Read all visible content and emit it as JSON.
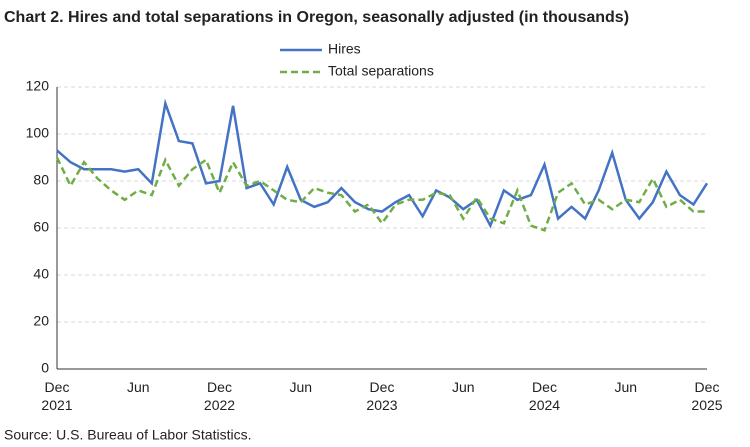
{
  "chart_data": {
    "type": "line",
    "title": "Chart 2. Hires and total separations in Oregon, seasonally adjusted (in thousands)",
    "source": "Source: U.S. Bureau of Labor Statistics.",
    "categories": [
      "Dec 2021",
      null,
      null,
      null,
      null,
      null,
      "Jun",
      null,
      null,
      null,
      null,
      null,
      "Dec 2022",
      null,
      null,
      null,
      null,
      null,
      "Jun",
      null,
      null,
      null,
      null,
      null,
      "Dec 2023",
      null,
      null,
      null,
      null,
      null,
      "Jun",
      null,
      null,
      null,
      null,
      null,
      "Dec 2024",
      null,
      null,
      null,
      null,
      null,
      "Jun",
      null,
      null,
      null,
      null,
      null,
      "Dec 2025"
    ],
    "series": [
      {
        "name": "Hires",
        "color": "#4472c4",
        "dash": false,
        "values": [
          93,
          88,
          85,
          85,
          85,
          84,
          85,
          79,
          113,
          97,
          96,
          79,
          80,
          112,
          77,
          79,
          70,
          86,
          72,
          69,
          71,
          77,
          71,
          68,
          67,
          71,
          74,
          65,
          76,
          73,
          68,
          72,
          61,
          76,
          72,
          74,
          87,
          64,
          69,
          64,
          76,
          92,
          72,
          64,
          71,
          84,
          74,
          70,
          79
        ]
      },
      {
        "name": "Total separations",
        "color": "#70ad47",
        "dash": true,
        "values": [
          90,
          78,
          88,
          81,
          76,
          72,
          76,
          74,
          89,
          78,
          85,
          89,
          75,
          88,
          78,
          80,
          76,
          72,
          71,
          77,
          75,
          74,
          67,
          70,
          62,
          70,
          72,
          72,
          75,
          74,
          64,
          73,
          64,
          62,
          76,
          61,
          59,
          75,
          79,
          70,
          72,
          68,
          72,
          71,
          81,
          69,
          72,
          67,
          67
        ]
      }
    ],
    "ylim": [
      0,
      120
    ],
    "yticks": [
      0,
      20,
      40,
      60,
      80,
      100,
      120
    ],
    "grid": true
  }
}
